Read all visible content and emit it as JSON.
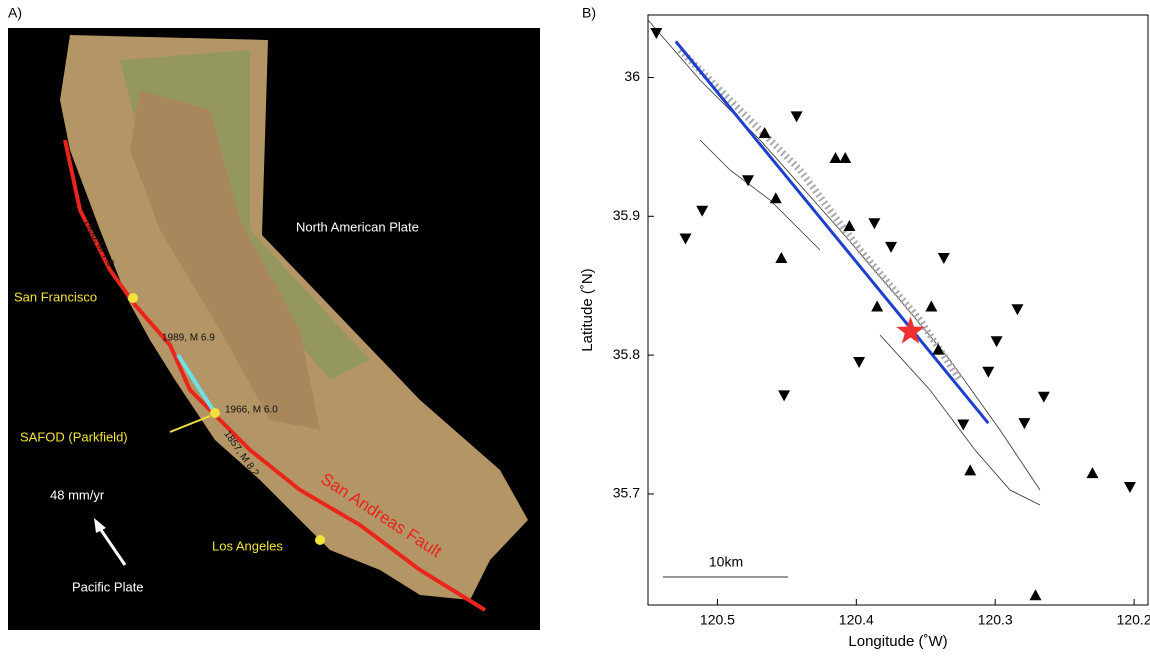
{
  "panel_a": {
    "label": "A)",
    "north_plate": "North American Plate",
    "san_francisco": "San Francisco",
    "eq_1906": "1906, M 7.8",
    "eq_1989": "1989, M 6.9",
    "eq_1966": "1966, M 6.0",
    "eq_1857": "1857, M 8.2",
    "safod": "SAFOD (Parkfield)",
    "fault": "San Andreas Fault",
    "los_angeles": "Los Angeles",
    "rate": "48 mm/yr",
    "pacific_plate": "Pacific Plate"
  },
  "chart_data": {
    "type": "scatter",
    "label": "B)",
    "x_label": "Longitude (˚W)",
    "y_label": "Latitude (˚N)",
    "scale_label": "10km",
    "xlim": [
      120.55,
      120.19
    ],
    "ylim": [
      35.62,
      36.045
    ],
    "xticks": [
      120.5,
      120.4,
      120.3,
      120.2
    ],
    "yticks": [
      36,
      35.9,
      35.8,
      35.7
    ],
    "series": [
      {
        "marker": "triangle-down",
        "color": "#000000",
        "x": [
          120.544,
          120.443,
          120.511,
          120.523,
          120.478,
          120.387,
          120.375,
          120.337,
          120.398,
          120.452,
          120.284,
          120.299,
          120.305,
          120.265,
          120.279,
          120.323,
          120.203
        ],
        "y": [
          36.032,
          35.972,
          35.904,
          35.884,
          35.926,
          35.895,
          35.878,
          35.87,
          35.795,
          35.771,
          35.833,
          35.81,
          35.788,
          35.77,
          35.751,
          35.75,
          35.705
        ]
      },
      {
        "marker": "triangle-up",
        "color": "#000000",
        "x": [
          120.466,
          120.415,
          120.408,
          120.458,
          120.454,
          120.405,
          120.385,
          120.346,
          120.318,
          120.23,
          120.271,
          120.341
        ],
        "y": [
          35.96,
          35.942,
          35.942,
          35.913,
          35.87,
          35.893,
          35.835,
          35.835,
          35.717,
          35.715,
          35.627,
          35.804
        ]
      }
    ],
    "line": {
      "color": "#1f3fd0",
      "x": [
        120.53,
        120.305
      ],
      "y": [
        36.026,
        35.751
      ]
    },
    "star": {
      "color": "#f03030",
      "x": 120.361,
      "y": 35.817
    }
  }
}
